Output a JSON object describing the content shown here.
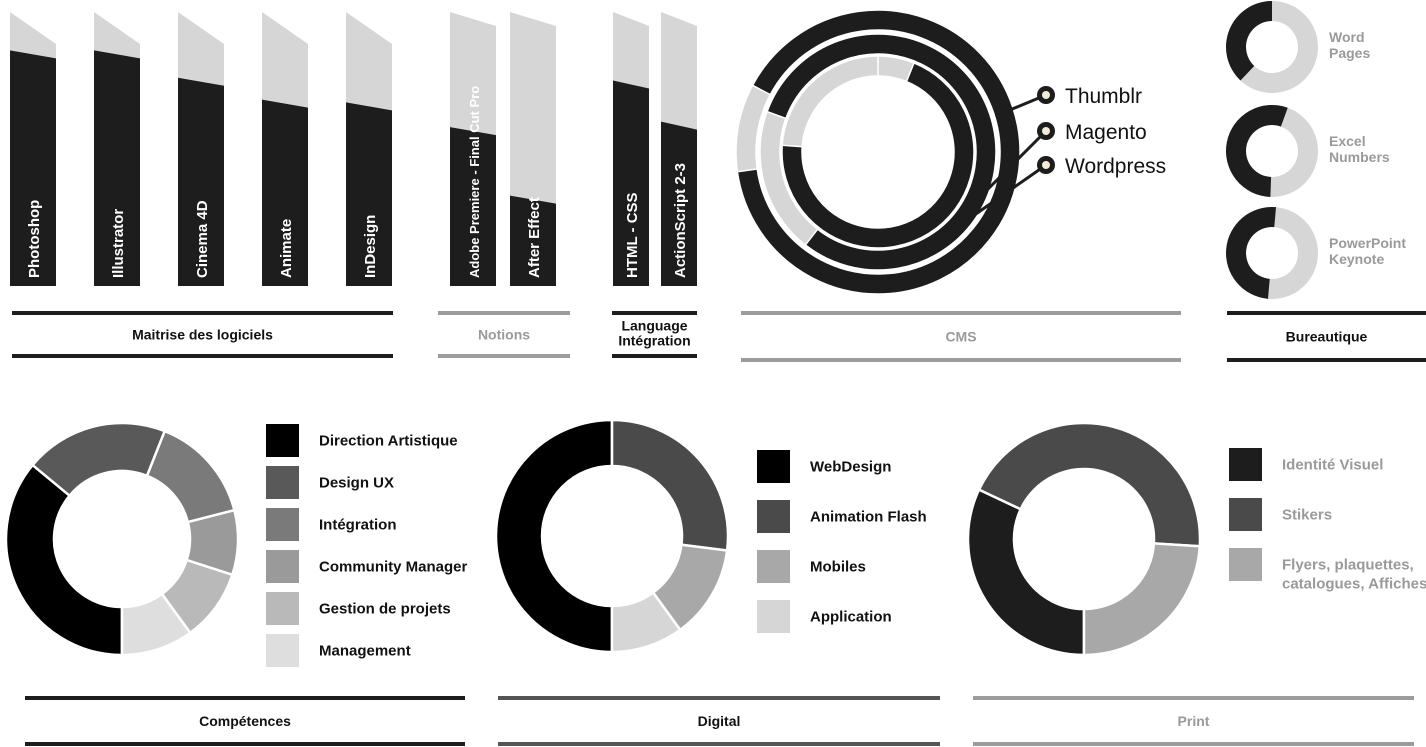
{
  "colors": {
    "dark": "#1d1d1d",
    "light": "#d6d6d6",
    "grey": "#9c9c9c",
    "accent": "#f3ecd6"
  },
  "sections_top": [
    {
      "key": "logiciels",
      "label": "Maitrise des logiciels",
      "tone": "dark"
    },
    {
      "key": "notions",
      "label": "Notions",
      "tone": "grey"
    },
    {
      "key": "language",
      "label": "Language",
      "label2": "Intégration",
      "tone": "dark"
    },
    {
      "key": "cms",
      "label": "CMS",
      "tone": "grey"
    },
    {
      "key": "bureautique",
      "label": "Bureautique",
      "tone": "dark"
    }
  ],
  "sections_bottom": [
    {
      "key": "competences",
      "label": "Compétences",
      "tone": "dark"
    },
    {
      "key": "digital",
      "label": "Digital",
      "tone": "mid"
    },
    {
      "key": "print",
      "label": "Print",
      "tone": "grey"
    }
  ],
  "chart_data": [
    {
      "type": "bar",
      "group": "Maitrise des logiciels",
      "categories": [
        "Photoshop",
        "Illustrator",
        "Cinema 4D",
        "Animate",
        "InDesign"
      ],
      "values": [
        86,
        86,
        76,
        68,
        67
      ],
      "ylim": [
        0,
        100
      ]
    },
    {
      "type": "bar",
      "group": "Notions",
      "categories": [
        "Adobe Premiere - Final Cut Pro",
        "After Effect"
      ],
      "values": [
        58,
        33
      ],
      "ylim": [
        0,
        100
      ]
    },
    {
      "type": "bar",
      "group": "Language Intégration",
      "categories": [
        "HTML - CSS",
        "ActionScript 2-3"
      ],
      "values": [
        75,
        60
      ],
      "ylim": [
        0,
        100
      ]
    },
    {
      "type": "pie",
      "group": "CMS",
      "categories": [
        "Thumblr",
        "Magento",
        "Wordpress"
      ],
      "values": [
        90,
        80,
        70
      ]
    },
    {
      "type": "pie",
      "group": "Bureautique",
      "categories": [
        "Word Pages",
        "Excel Numbers",
        "PowerPoint Keynote"
      ],
      "labels": [
        [
          "Word",
          "Pages"
        ],
        [
          "Excel",
          "Numbers"
        ],
        [
          "PowerPoint",
          "Keynote"
        ]
      ],
      "values": [
        62,
        45,
        50
      ]
    },
    {
      "type": "pie",
      "group": "Compétences",
      "categories": [
        "Direction Artistique",
        "Design UX",
        "Intégration",
        "Community Manager",
        "Gestion de projets",
        "Management"
      ],
      "values": [
        36,
        20,
        15,
        9,
        10,
        10
      ],
      "colors": [
        "#000000",
        "#595959",
        "#7a7a7a",
        "#9a9a9a",
        "#b9b9b9",
        "#dedede"
      ]
    },
    {
      "type": "pie",
      "group": "Digital",
      "categories": [
        "WebDesign",
        "Animation Flash",
        "Mobiles",
        "Application"
      ],
      "values": [
        50,
        27,
        13,
        10
      ],
      "colors": [
        "#000000",
        "#4a4a4a",
        "#a8a8a8",
        "#d6d6d6"
      ]
    },
    {
      "type": "pie",
      "group": "Print",
      "categories": [
        "Identité Visuel",
        "Stikers",
        "Flyers, plaquettes, catalogues, Affiches"
      ],
      "labels": [
        [
          "Identité Visuel"
        ],
        [
          "Stikers"
        ],
        [
          "Flyers, plaquettes,",
          "catalogues, Affiches"
        ]
      ],
      "values": [
        32,
        44,
        24
      ],
      "colors": [
        "#1d1d1d",
        "#4a4a4a",
        "#a8a8a8"
      ]
    }
  ]
}
